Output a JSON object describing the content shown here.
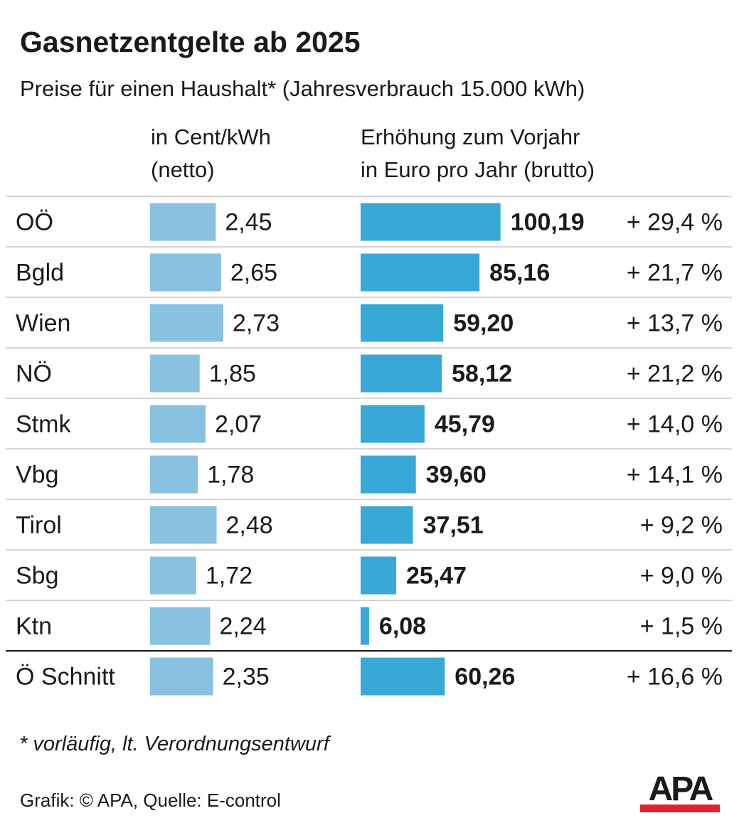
{
  "title": "Gasnetzentgelte ab 2025",
  "subtitle": "Preise für einen Haushalt* (Jahresverbrauch 15.000 kWh)",
  "column_headers": {
    "cent": [
      "in Cent/kWh",
      "(netto)"
    ],
    "increase": [
      "Erhöhung zum Vorjahr",
      "in Euro pro Jahr (brutto)"
    ]
  },
  "footnote": "* vorläufig, lt. Verordnungsentwurf",
  "credit": "Grafik: © APA, Quelle: E-control",
  "logo": {
    "text": "APA",
    "bar_color": "#e4202a"
  },
  "colors": {
    "cent_bar": "#89c2e0",
    "increase_bar": "#38a8d6",
    "grid": "#d4d4d4",
    "total_line": "#1a1a1a"
  },
  "chart_data": {
    "type": "bar",
    "categories": [
      "OÖ",
      "Bgld",
      "Wien",
      "NÖ",
      "Stmk",
      "Vbg",
      "Tirol",
      "Sbg",
      "Ktn",
      "Ö Schnitt"
    ],
    "series": [
      {
        "name": "in Cent/kWh (netto)",
        "values": [
          2.45,
          2.65,
          2.73,
          1.85,
          2.07,
          1.78,
          2.48,
          1.72,
          2.24,
          2.35
        ],
        "labels": [
          "2,45",
          "2,65",
          "2,73",
          "1,85",
          "2,07",
          "1,78",
          "2,48",
          "1,72",
          "2,24",
          "2,35"
        ]
      },
      {
        "name": "Erhöhung zum Vorjahr in Euro pro Jahr (brutto)",
        "values": [
          100.19,
          85.16,
          59.2,
          58.12,
          45.79,
          39.6,
          37.51,
          25.47,
          6.08,
          60.26
        ],
        "labels": [
          "100,19",
          "85,16",
          "59,20",
          "58,12",
          "45,79",
          "39,60",
          "37,51",
          "25,47",
          "6,08",
          "60,26"
        ]
      }
    ],
    "percent_change": [
      "+ 29,4 %",
      "+ 21,7 %",
      "+ 13,7 %",
      "+ 21,2 %",
      "+ 14,0 %",
      "+ 14,1 %",
      "+ 9,2 %",
      "+ 9,0 %",
      "+ 1,5 %",
      "+ 16,6 %"
    ]
  }
}
